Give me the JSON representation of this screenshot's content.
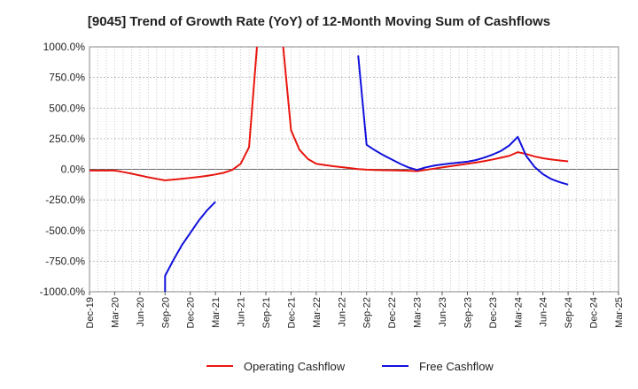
{
  "chart_data": {
    "type": "line",
    "title": "[9045]  Trend of Growth Rate (YoY) of 12-Month Moving Sum of Cashflows",
    "xlabel": "",
    "ylabel": "",
    "x_ticks": [
      "Dec-19",
      "Mar-20",
      "Jun-20",
      "Sep-20",
      "Dec-20",
      "Mar-21",
      "Jun-21",
      "Sep-21",
      "Dec-21",
      "Mar-22",
      "Jun-22",
      "Sep-22",
      "Dec-22",
      "Mar-23",
      "Jun-23",
      "Sep-23",
      "Dec-23",
      "Mar-24",
      "Jun-24",
      "Sep-24",
      "Dec-24",
      "Mar-25"
    ],
    "y_ticks": [
      "1000.0%",
      "750.0%",
      "500.0%",
      "250.0%",
      "0.0%",
      "-250.0%",
      "-500.0%",
      "-750.0%",
      "-1000.0%"
    ],
    "ylim": [
      -1000,
      1000
    ],
    "grid": true,
    "legend_position": "bottom",
    "colors": {
      "operating": "#e8160f",
      "free": "#1111dd",
      "grid": "#aaaaaa",
      "zero_line": "#666666"
    },
    "series": [
      {
        "name": "Operating Cashflow",
        "color": "#e8160f",
        "points": [
          [
            "Dec-19",
            -10
          ],
          [
            "Jan-20",
            -10
          ],
          [
            "Feb-20",
            -10
          ],
          [
            "Mar-20",
            -10
          ],
          [
            "Apr-20",
            -22
          ],
          [
            "May-20",
            -35
          ],
          [
            "Jun-20",
            -50
          ],
          [
            "Jul-20",
            -65
          ],
          [
            "Aug-20",
            -78
          ],
          [
            "Sep-20",
            -90
          ],
          [
            "Oct-20",
            -84
          ],
          [
            "Nov-20",
            -78
          ],
          [
            "Dec-20",
            -70
          ],
          [
            "Jan-21",
            -62
          ],
          [
            "Feb-21",
            -53
          ],
          [
            "Mar-21",
            -42
          ],
          [
            "Apr-21",
            -28
          ],
          [
            "May-21",
            -5
          ],
          [
            "Jun-21",
            45
          ],
          [
            "Jul-21",
            180
          ],
          [
            "Aug-21",
            1050
          ],
          [
            "Sep-21",
            null
          ],
          [
            "Oct-21",
            null
          ],
          [
            "Nov-21",
            1050
          ],
          [
            "Dec-21",
            320
          ],
          [
            "Jan-22",
            160
          ],
          [
            "Feb-22",
            85
          ],
          [
            "Mar-22",
            45
          ],
          [
            "Apr-22",
            35
          ],
          [
            "May-22",
            25
          ],
          [
            "Jun-22",
            18
          ],
          [
            "Jul-22",
            10
          ],
          [
            "Aug-22",
            2
          ],
          [
            "Sep-22",
            -3
          ],
          [
            "Oct-22",
            -5
          ],
          [
            "Nov-22",
            -7
          ],
          [
            "Dec-22",
            -8
          ],
          [
            "Jan-23",
            -10
          ],
          [
            "Feb-23",
            -12
          ],
          [
            "Mar-23",
            -15
          ],
          [
            "Apr-23",
            -5
          ],
          [
            "May-23",
            5
          ],
          [
            "Jun-23",
            15
          ],
          [
            "Jul-23",
            25
          ],
          [
            "Aug-23",
            35
          ],
          [
            "Sep-23",
            45
          ],
          [
            "Oct-23",
            55
          ],
          [
            "Nov-23",
            67
          ],
          [
            "Dec-23",
            80
          ],
          [
            "Jan-24",
            95
          ],
          [
            "Feb-24",
            110
          ],
          [
            "Mar-24",
            140
          ],
          [
            "Apr-24",
            125
          ],
          [
            "May-24",
            105
          ],
          [
            "Jun-24",
            90
          ],
          [
            "Jul-24",
            80
          ],
          [
            "Aug-24",
            72
          ],
          [
            "Sep-24",
            65
          ]
        ]
      },
      {
        "name": "Free Cashflow",
        "color": "#1111dd",
        "points": [
          [
            "Sep-20",
            -1050
          ],
          [
            "Sep-20",
            -870
          ],
          [
            "Oct-20",
            -740
          ],
          [
            "Nov-20",
            -620
          ],
          [
            "Dec-20",
            -520
          ],
          [
            "Jan-21",
            -420
          ],
          [
            "Feb-21",
            -335
          ],
          [
            "Mar-21",
            -265
          ],
          [
            "Apr-21",
            null
          ],
          [
            "Aug-22",
            930
          ],
          [
            "Sep-22",
            200
          ],
          [
            "Oct-22",
            155
          ],
          [
            "Nov-22",
            115
          ],
          [
            "Dec-22",
            80
          ],
          [
            "Jan-23",
            45
          ],
          [
            "Feb-23",
            15
          ],
          [
            "Mar-23",
            -5
          ],
          [
            "Apr-23",
            15
          ],
          [
            "May-23",
            30
          ],
          [
            "Jun-23",
            40
          ],
          [
            "Jul-23",
            48
          ],
          [
            "Aug-23",
            55
          ],
          [
            "Sep-23",
            62
          ],
          [
            "Oct-23",
            75
          ],
          [
            "Nov-23",
            95
          ],
          [
            "Dec-23",
            120
          ],
          [
            "Jan-24",
            150
          ],
          [
            "Feb-24",
            195
          ],
          [
            "Mar-24",
            265
          ],
          [
            "Apr-24",
            110
          ],
          [
            "May-24",
            20
          ],
          [
            "Jun-24",
            -40
          ],
          [
            "Jul-24",
            -80
          ],
          [
            "Aug-24",
            -105
          ],
          [
            "Sep-24",
            -125
          ]
        ]
      }
    ]
  }
}
